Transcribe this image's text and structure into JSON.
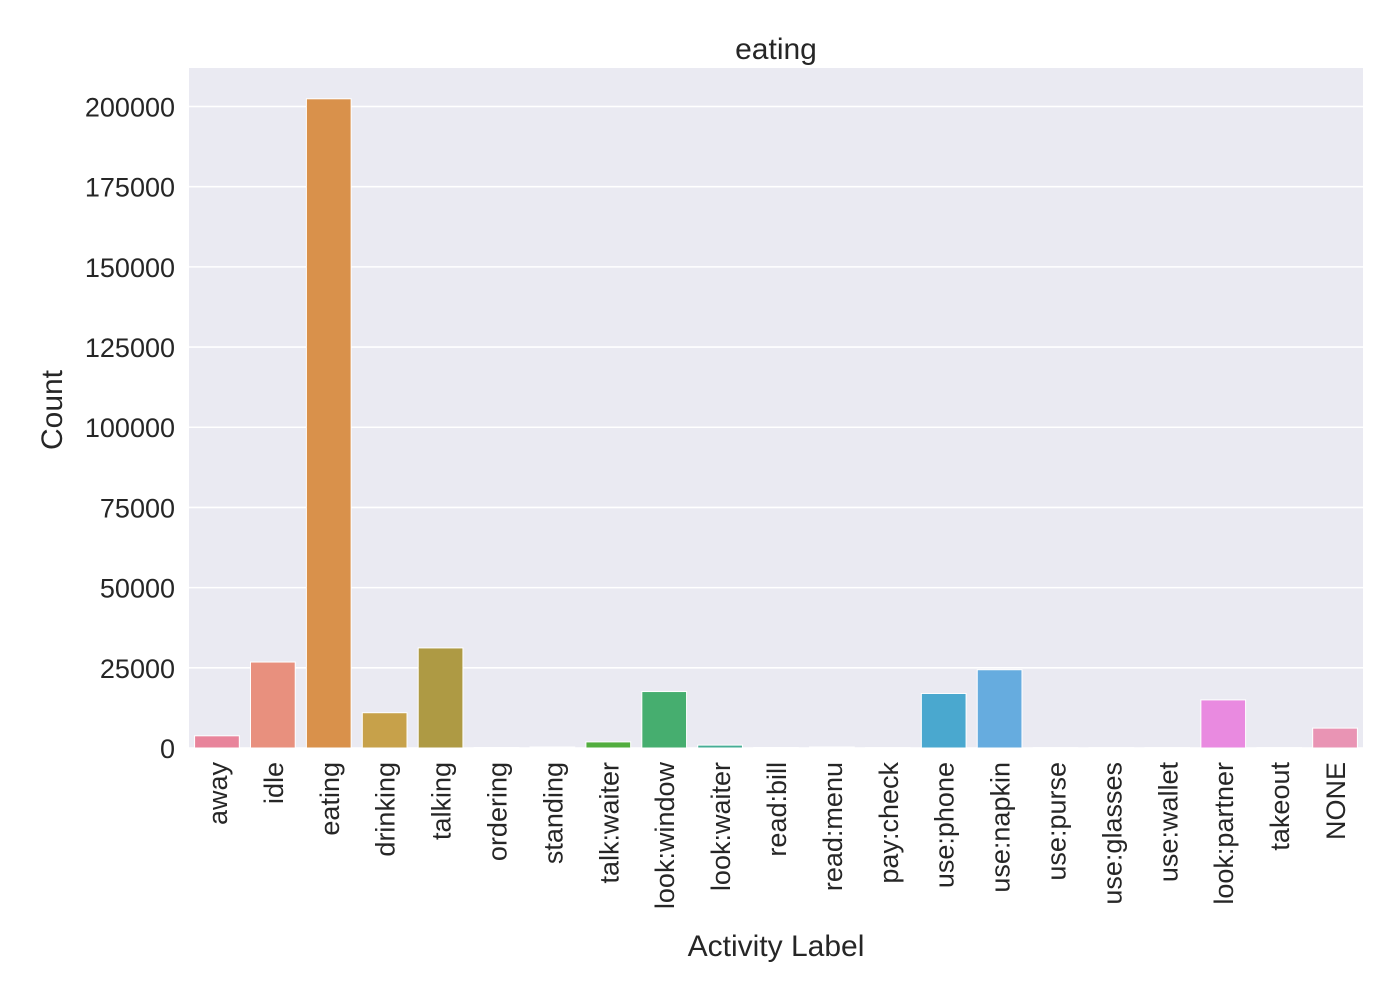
{
  "chart_data": {
    "type": "bar",
    "title": "eating",
    "xlabel": "Activity Label",
    "ylabel": "Count",
    "ylim": [
      0,
      212000
    ],
    "yticks": [
      0,
      25000,
      50000,
      75000,
      100000,
      125000,
      150000,
      175000,
      200000
    ],
    "grid": true,
    "categories": [
      "away",
      "idle",
      "eating",
      "drinking",
      "talking",
      "ordering",
      "standing",
      "talk:waiter",
      "look:window",
      "look:waiter",
      "read:bill",
      "read:menu",
      "pay:check",
      "use:phone",
      "use:napkin",
      "use:purse",
      "use:glasses",
      "use:wallet",
      "look:partner",
      "takeout",
      "NONE"
    ],
    "values": [
      3800,
      26800,
      202400,
      11000,
      31200,
      150,
      300,
      1900,
      17600,
      900,
      150,
      300,
      100,
      17000,
      24400,
      100,
      100,
      100,
      15000,
      100,
      6200
    ],
    "colors": [
      "#e8849b",
      "#e8907e",
      "#d9914b",
      "#c7a14a",
      "#ae9a44",
      "#a59f3f",
      "#8fa642",
      "#52ad3f",
      "#46ae6f",
      "#46ad95",
      "#48aaa6",
      "#4aa8b8",
      "#4ba6c9",
      "#4aa8cf",
      "#66acdf",
      "#9b9ce4",
      "#bb8ee4",
      "#d98be0",
      "#e98ae0",
      "#ea8ac1",
      "#e994b4"
    ]
  }
}
